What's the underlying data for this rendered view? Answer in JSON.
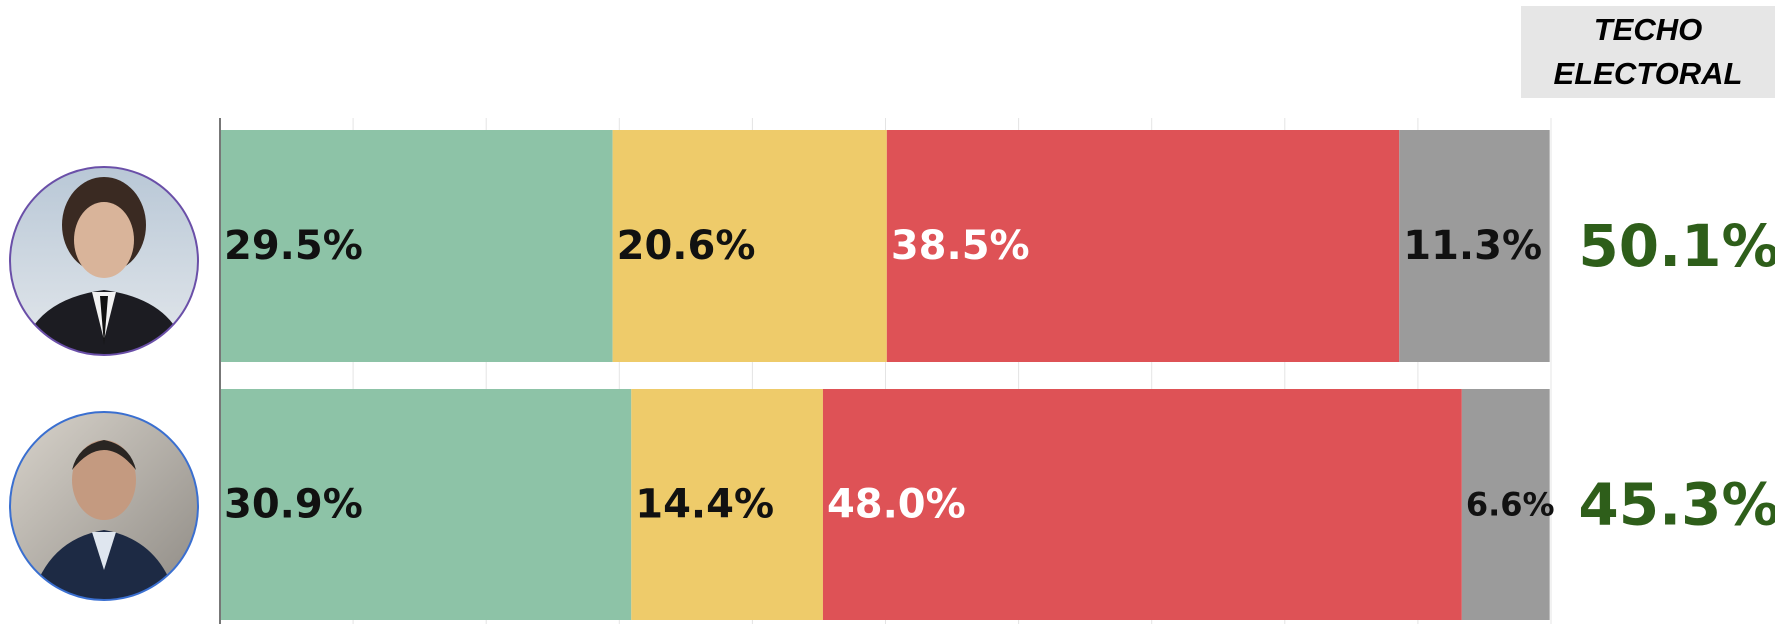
{
  "chart_data": {
    "type": "stacked-bar",
    "orientation": "horizontal",
    "categories": [
      null,
      null
    ],
    "xlim": [
      0,
      100
    ],
    "xticks": [
      0,
      10,
      20,
      30,
      40,
      50,
      60,
      70,
      80,
      90,
      100
    ],
    "grid": true,
    "series": [
      {
        "color": "#8dc3a7",
        "label_color": "#111111",
        "values": [
          29.5,
          30.9
        ],
        "value_labels": [
          "29.5%",
          "30.9%"
        ]
      },
      {
        "color": "#eecb6a",
        "label_color": "#111111",
        "values": [
          20.6,
          14.4
        ],
        "value_labels": [
          "20.6%",
          "14.4%"
        ]
      },
      {
        "color": "#de5256",
        "label_color": "#ffffff",
        "values": [
          38.5,
          48.0
        ],
        "value_labels": [
          "38.5%",
          "48.0%"
        ]
      },
      {
        "color": "#9b9b9b",
        "label_color": "#111111",
        "values": [
          11.3,
          6.6
        ],
        "value_labels": [
          "11.3%",
          "6.6%"
        ]
      }
    ],
    "techo_electoral": {
      "title": "TECHO ELECTORAL",
      "color": "#2e5e1a",
      "values": [
        50.1,
        45.3
      ],
      "value_labels": [
        "50.1%",
        "45.3%"
      ]
    }
  }
}
